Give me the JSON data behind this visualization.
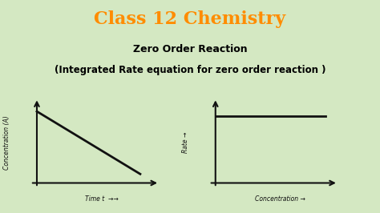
{
  "title": "Class 12 Chemistry",
  "subtitle1": "Zero Order Reaction",
  "subtitle2": "(Integrated Rate equation for zero order reaction )",
  "title_color": "#FF8C00",
  "title_bg_color": "#FFFF99",
  "subtitle_color": "#000000",
  "bg_color": "#d4e8c2",
  "panel_bg_color": "#FFFFFF",
  "graph1_ylabel": "Concentration (A)",
  "graph1_xlabel": "Time t  →→",
  "graph2_ylabel": "Rate →",
  "graph2_xlabel": "Concentration →",
  "line_color": "#111111",
  "line_width": 2.0
}
